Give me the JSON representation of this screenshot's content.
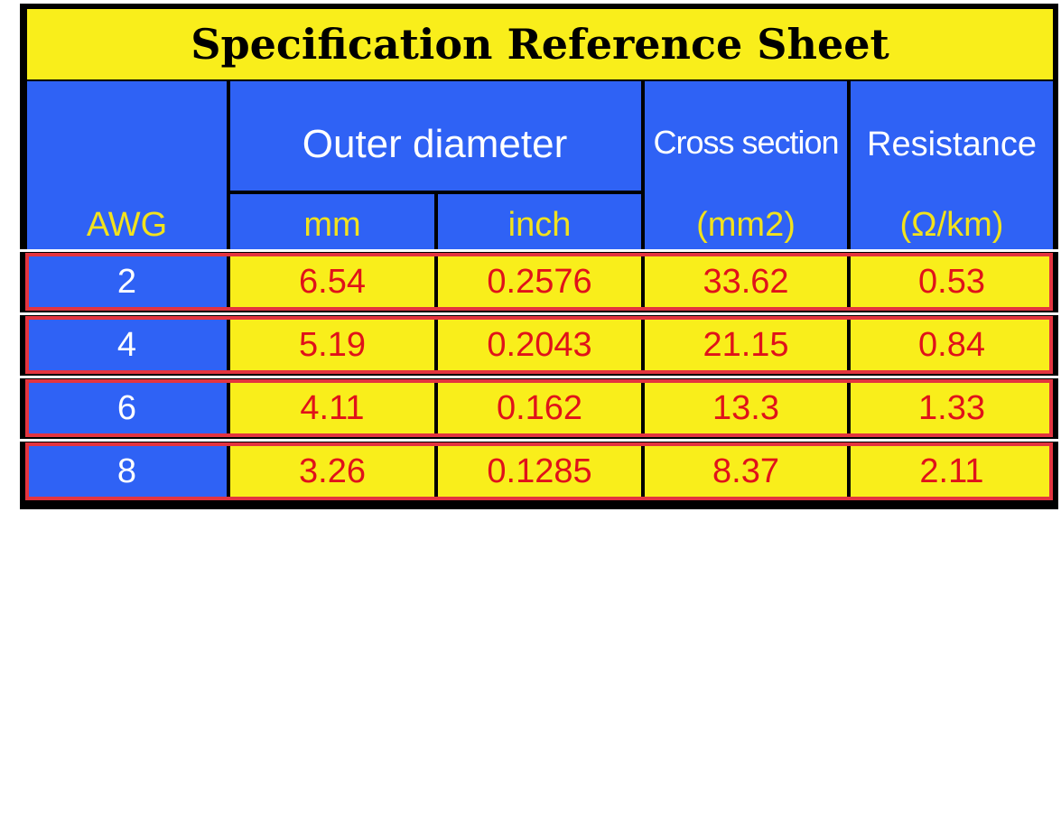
{
  "title": "Specification Reference Sheet",
  "table": {
    "header": {
      "awg": "AWG",
      "outer_diameter": "Outer diameter",
      "cross_section": "Cross section",
      "resistance": "Resistance",
      "units": [
        "mm",
        "inch",
        "(mm2)",
        "(Ω/km)"
      ]
    },
    "rows": [
      [
        "2",
        "6.54",
        "0.2576",
        "33.62",
        "0.53"
      ],
      [
        "4",
        "5.19",
        "0.2043",
        "21.15",
        "0.84"
      ],
      [
        "6",
        "4.11",
        "0.162",
        "13.3",
        "1.33"
      ],
      [
        "8",
        "3.26",
        "0.1285",
        "8.37",
        "2.11"
      ]
    ]
  }
}
